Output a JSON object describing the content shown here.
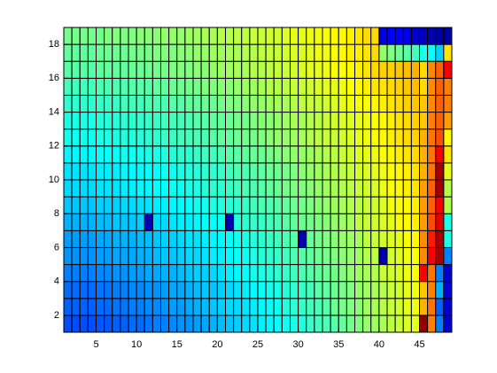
{
  "chart_data": {
    "type": "pcolor",
    "colormap": "jet",
    "clim": [
      0,
      100
    ],
    "xlim": [
      1,
      49
    ],
    "ylim": [
      1,
      19
    ],
    "xticks": [
      5,
      10,
      15,
      20,
      25,
      30,
      35,
      40,
      45
    ],
    "yticks": [
      2,
      4,
      6,
      8,
      10,
      12,
      14,
      16,
      18
    ],
    "z": [
      [
        20,
        20,
        20,
        20,
        21,
        21,
        22,
        22,
        23,
        23,
        24,
        25,
        25,
        26,
        27,
        27,
        28,
        29,
        30,
        31,
        32,
        33,
        34,
        35,
        36,
        37,
        38,
        39,
        40,
        41,
        43,
        44,
        45,
        46,
        47,
        49,
        50,
        52,
        53,
        54,
        56,
        57,
        59,
        60,
        98,
        75,
        25,
        8
      ],
      [
        22,
        22,
        22,
        22,
        23,
        23,
        24,
        24,
        25,
        25,
        26,
        26,
        27,
        28,
        28,
        29,
        30,
        31,
        32,
        33,
        34,
        34,
        35,
        36,
        37,
        38,
        39,
        41,
        42,
        43,
        44,
        45,
        46,
        48,
        49,
        50,
        51,
        53,
        54,
        55,
        57,
        58,
        60,
        61,
        70,
        76,
        22,
        8
      ],
      [
        23,
        23,
        23,
        23,
        24,
        24,
        25,
        25,
        26,
        26,
        27,
        27,
        28,
        29,
        29,
        30,
        31,
        32,
        32,
        33,
        34,
        35,
        36,
        37,
        38,
        39,
        40,
        41,
        42,
        43,
        44,
        46,
        47,
        48,
        49,
        50,
        52,
        53,
        54,
        55,
        57,
        58,
        60,
        61,
        68,
        75,
        30,
        8
      ],
      [
        25,
        25,
        25,
        25,
        26,
        26,
        27,
        27,
        28,
        28,
        29,
        29,
        30,
        30,
        31,
        32,
        33,
        33,
        34,
        35,
        36,
        37,
        38,
        39,
        40,
        41,
        42,
        43,
        44,
        45,
        46,
        47,
        48,
        49,
        50,
        52,
        53,
        54,
        55,
        57,
        58,
        59,
        61,
        62,
        88,
        76,
        25,
        8
      ],
      [
        27,
        27,
        27,
        27,
        28,
        28,
        29,
        29,
        29,
        30,
        30,
        31,
        32,
        32,
        33,
        34,
        34,
        35,
        36,
        36,
        37,
        38,
        39,
        40,
        41,
        42,
        43,
        44,
        45,
        46,
        47,
        48,
        49,
        50,
        51,
        52,
        53,
        55,
        56,
        5,
        58,
        59,
        61,
        62,
        74,
        88,
        96,
        25
      ],
      [
        28,
        28,
        28,
        28,
        29,
        29,
        30,
        30,
        30,
        31,
        31,
        32,
        33,
        33,
        34,
        35,
        35,
        36,
        37,
        37,
        38,
        39,
        40,
        41,
        42,
        43,
        44,
        45,
        46,
        5,
        48,
        49,
        50,
        51,
        52,
        53,
        54,
        56,
        57,
        58,
        59,
        60,
        62,
        63,
        74,
        85,
        96,
        40
      ],
      [
        30,
        30,
        30,
        30,
        31,
        31,
        32,
        32,
        32,
        33,
        5,
        34,
        34,
        35,
        36,
        36,
        37,
        38,
        38,
        39,
        5,
        41,
        42,
        43,
        43,
        44,
        45,
        46,
        47,
        48,
        49,
        50,
        51,
        52,
        53,
        54,
        56,
        57,
        58,
        59,
        60,
        62,
        63,
        64,
        72,
        80,
        90,
        40
      ],
      [
        32,
        32,
        32,
        32,
        33,
        33,
        33,
        34,
        34,
        35,
        35,
        36,
        36,
        37,
        37,
        38,
        39,
        39,
        40,
        41,
        41,
        42,
        43,
        44,
        45,
        45,
        46,
        47,
        48,
        49,
        50,
        51,
        52,
        53,
        54,
        55,
        56,
        57,
        58,
        59,
        61,
        62,
        63,
        64,
        72,
        78,
        88,
        55
      ],
      [
        34,
        34,
        34,
        34,
        35,
        35,
        35,
        36,
        36,
        37,
        37,
        38,
        38,
        39,
        39,
        40,
        40,
        41,
        42,
        42,
        43,
        44,
        45,
        45,
        46,
        47,
        48,
        49,
        50,
        50,
        51,
        52,
        53,
        54,
        55,
        56,
        57,
        58,
        59,
        61,
        62,
        63,
        64,
        65,
        72,
        78,
        96,
        55
      ],
      [
        35,
        35,
        35,
        35,
        36,
        36,
        36,
        37,
        37,
        37,
        38,
        38,
        39,
        39,
        40,
        41,
        41,
        42,
        42,
        43,
        44,
        45,
        45,
        46,
        47,
        48,
        48,
        49,
        50,
        51,
        52,
        53,
        54,
        55,
        56,
        57,
        58,
        59,
        60,
        61,
        62,
        63,
        64,
        65,
        70,
        76,
        96,
        60
      ],
      [
        37,
        37,
        37,
        37,
        38,
        38,
        38,
        39,
        39,
        39,
        40,
        40,
        41,
        41,
        42,
        42,
        43,
        44,
        44,
        45,
        46,
        46,
        47,
        48,
        48,
        49,
        50,
        51,
        52,
        52,
        53,
        54,
        55,
        56,
        57,
        58,
        59,
        60,
        61,
        62,
        63,
        64,
        65,
        66,
        70,
        76,
        88,
        65
      ],
      [
        39,
        39,
        39,
        39,
        40,
        40,
        40,
        41,
        41,
        41,
        42,
        42,
        43,
        43,
        44,
        44,
        45,
        45,
        46,
        47,
        47,
        48,
        49,
        49,
        50,
        51,
        52,
        52,
        53,
        54,
        55,
        56,
        57,
        57,
        58,
        59,
        60,
        61,
        62,
        63,
        64,
        65,
        66,
        67,
        70,
        76,
        80,
        63
      ],
      [
        40,
        40,
        40,
        40,
        41,
        41,
        41,
        42,
        42,
        42,
        43,
        43,
        44,
        44,
        44,
        45,
        46,
        46,
        47,
        47,
        48,
        49,
        49,
        50,
        51,
        51,
        52,
        53,
        54,
        54,
        55,
        56,
        57,
        58,
        59,
        59,
        60,
        61,
        62,
        63,
        64,
        65,
        66,
        67,
        68,
        75,
        78,
        72
      ],
      [
        42,
        42,
        42,
        42,
        43,
        43,
        43,
        44,
        44,
        44,
        45,
        45,
        45,
        46,
        46,
        47,
        47,
        48,
        48,
        49,
        50,
        50,
        51,
        52,
        52,
        53,
        54,
        54,
        55,
        56,
        57,
        57,
        58,
        59,
        60,
        61,
        62,
        62,
        63,
        64,
        65,
        66,
        67,
        68,
        68,
        74,
        78,
        75
      ],
      [
        44,
        44,
        44,
        44,
        45,
        45,
        45,
        45,
        46,
        46,
        46,
        47,
        47,
        48,
        48,
        49,
        49,
        50,
        50,
        51,
        51,
        52,
        53,
        53,
        54,
        55,
        55,
        56,
        57,
        57,
        58,
        59,
        60,
        60,
        61,
        62,
        63,
        64,
        65,
        65,
        66,
        67,
        68,
        69,
        66,
        74,
        78,
        75
      ],
      [
        46,
        46,
        46,
        46,
        47,
        47,
        47,
        47,
        48,
        48,
        48,
        49,
        49,
        50,
        50,
        50,
        51,
        51,
        52,
        53,
        53,
        54,
        54,
        55,
        55,
        56,
        57,
        57,
        58,
        59,
        60,
        60,
        61,
        62,
        62,
        63,
        64,
        65,
        66,
        67,
        67,
        68,
        69,
        70,
        66,
        74,
        78,
        88
      ],
      [
        47,
        47,
        47,
        47,
        48,
        48,
        48,
        48,
        49,
        49,
        49,
        50,
        50,
        50,
        51,
        51,
        52,
        52,
        53,
        53,
        54,
        54,
        55,
        55,
        56,
        57,
        57,
        58,
        59,
        59,
        60,
        61,
        61,
        62,
        63,
        64,
        64,
        65,
        66,
        52,
        50,
        48,
        46,
        44,
        40,
        38,
        33,
        65
      ],
      [
        49,
        49,
        49,
        49,
        49,
        50,
        50,
        50,
        50,
        51,
        51,
        51,
        52,
        52,
        52,
        53,
        53,
        54,
        54,
        55,
        55,
        56,
        56,
        57,
        57,
        58,
        58,
        59,
        60,
        60,
        61,
        61,
        62,
        63,
        63,
        64,
        65,
        66,
        66,
        10,
        12,
        12,
        10,
        8,
        6,
        5,
        4,
        3
      ]
    ]
  }
}
